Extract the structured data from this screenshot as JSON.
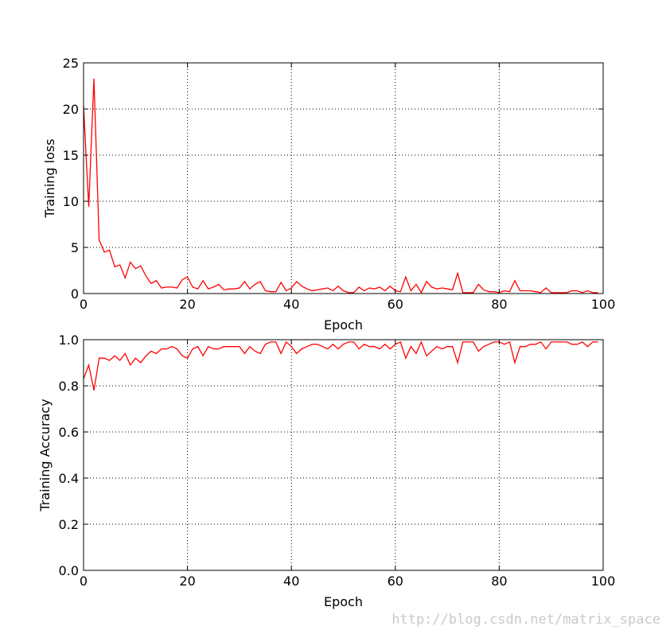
{
  "watermark": "http://blog.csdn.net/matrix_space",
  "colors": {
    "series": "#ff0000",
    "grid": "#000000",
    "frame": "#000000"
  },
  "chart_data": [
    {
      "type": "line",
      "title": "",
      "xlabel": "Epoch",
      "ylabel": "Training loss",
      "xlim": [
        0,
        100
      ],
      "ylim": [
        0,
        25
      ],
      "xticks": [
        0,
        20,
        40,
        60,
        80,
        100
      ],
      "yticks": [
        0,
        5,
        10,
        15,
        20,
        25
      ],
      "grid": true,
      "series": [
        {
          "values": [
            20.3,
            9.4,
            23.3,
            5.8,
            4.5,
            4.7,
            2.9,
            3.1,
            1.7,
            3.4,
            2.7,
            3.0,
            1.9,
            1.1,
            1.4,
            0.6,
            0.7,
            0.7,
            0.6,
            1.5,
            1.8,
            0.7,
            0.5,
            1.4,
            0.5,
            0.7,
            1.0,
            0.4,
            0.5,
            0.5,
            0.6,
            1.3,
            0.5,
            1.0,
            1.3,
            0.3,
            0.2,
            0.2,
            1.2,
            0.3,
            0.6,
            1.3,
            0.8,
            0.5,
            0.3,
            0.4,
            0.5,
            0.6,
            0.3,
            0.8,
            0.3,
            0.1,
            0.1,
            0.7,
            0.3,
            0.6,
            0.5,
            0.7,
            0.3,
            0.8,
            0.3,
            0.2,
            1.8,
            0.3,
            1.0,
            0.1,
            1.3,
            0.7,
            0.5,
            0.6,
            0.5,
            0.4,
            2.2,
            0.1,
            0.1,
            0.1,
            1.0,
            0.4,
            0.2,
            0.2,
            0.1,
            0.3,
            0.2,
            1.4,
            0.3,
            0.3,
            0.3,
            0.2,
            0.1,
            0.6,
            0.1,
            0.1,
            0.1,
            0.1,
            0.3,
            0.3,
            0.1,
            0.3,
            0.1,
            0.1
          ]
        }
      ]
    },
    {
      "type": "line",
      "title": "",
      "xlabel": "Epoch",
      "ylabel": "Training Accuracy",
      "xlim": [
        0,
        100
      ],
      "ylim": [
        0.0,
        1.0
      ],
      "xticks": [
        0,
        20,
        40,
        60,
        80,
        100
      ],
      "yticks": [
        0.0,
        0.2,
        0.4,
        0.6,
        0.8,
        1.0
      ],
      "grid": true,
      "series": [
        {
          "values": [
            0.83,
            0.89,
            0.78,
            0.92,
            0.92,
            0.91,
            0.93,
            0.91,
            0.94,
            0.89,
            0.92,
            0.9,
            0.93,
            0.95,
            0.94,
            0.96,
            0.96,
            0.97,
            0.96,
            0.93,
            0.92,
            0.96,
            0.97,
            0.93,
            0.97,
            0.96,
            0.96,
            0.97,
            0.97,
            0.97,
            0.97,
            0.94,
            0.97,
            0.95,
            0.94,
            0.98,
            0.99,
            0.99,
            0.94,
            0.99,
            0.97,
            0.94,
            0.96,
            0.97,
            0.98,
            0.98,
            0.97,
            0.96,
            0.98,
            0.96,
            0.98,
            0.99,
            0.99,
            0.96,
            0.98,
            0.97,
            0.97,
            0.96,
            0.98,
            0.96,
            0.98,
            0.99,
            0.92,
            0.97,
            0.94,
            0.99,
            0.93,
            0.95,
            0.97,
            0.96,
            0.97,
            0.97,
            0.9,
            0.99,
            0.99,
            0.99,
            0.95,
            0.97,
            0.98,
            0.99,
            0.99,
            0.98,
            0.99,
            0.9,
            0.97,
            0.97,
            0.98,
            0.98,
            0.99,
            0.96,
            0.99,
            0.99,
            0.99,
            0.99,
            0.98,
            0.98,
            0.99,
            0.97,
            0.99,
            0.99
          ]
        }
      ]
    }
  ]
}
